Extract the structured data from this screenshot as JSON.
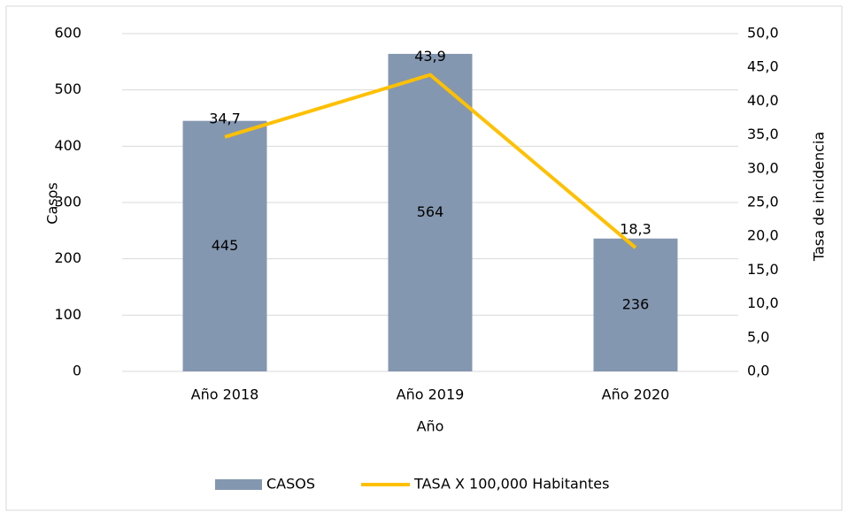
{
  "chart_data": {
    "type": "bar",
    "x_label": "Año",
    "y_label": "Casos",
    "y2_label": "Tasa de incidencia",
    "categories": [
      "Año 2018",
      "Año 2019",
      "Año 2020"
    ],
    "series": [
      {
        "name": "CASOS",
        "type": "bar",
        "color": "#8497b0",
        "values": [
          445,
          564,
          236
        ]
      },
      {
        "name": "TASA X 100,000 Habitantes",
        "type": "line",
        "axis": "y2",
        "color": "#ffc000",
        "values": [
          34.7,
          43.9,
          18.3
        ],
        "value_labels": [
          "34,7",
          "43,9",
          "18,3"
        ]
      }
    ],
    "ylim": [
      0,
      600
    ],
    "yticks": [
      0,
      100,
      200,
      300,
      400,
      500,
      600
    ],
    "y2lim": [
      0,
      50
    ],
    "y2ticks": [
      {
        "value": 0,
        "label": "0,0"
      },
      {
        "value": 5,
        "label": "5,0"
      },
      {
        "value": 10,
        "label": "10,0"
      },
      {
        "value": 15,
        "label": "15,0"
      },
      {
        "value": 20,
        "label": "20,0"
      },
      {
        "value": 25,
        "label": "25,0"
      },
      {
        "value": 30,
        "label": "30,0"
      },
      {
        "value": 35,
        "label": "35,0"
      },
      {
        "value": 40,
        "label": "40,0"
      },
      {
        "value": 45,
        "label": "45,0"
      },
      {
        "value": 50,
        "label": "50,0"
      }
    ],
    "grid": true,
    "legend": "bottom"
  }
}
